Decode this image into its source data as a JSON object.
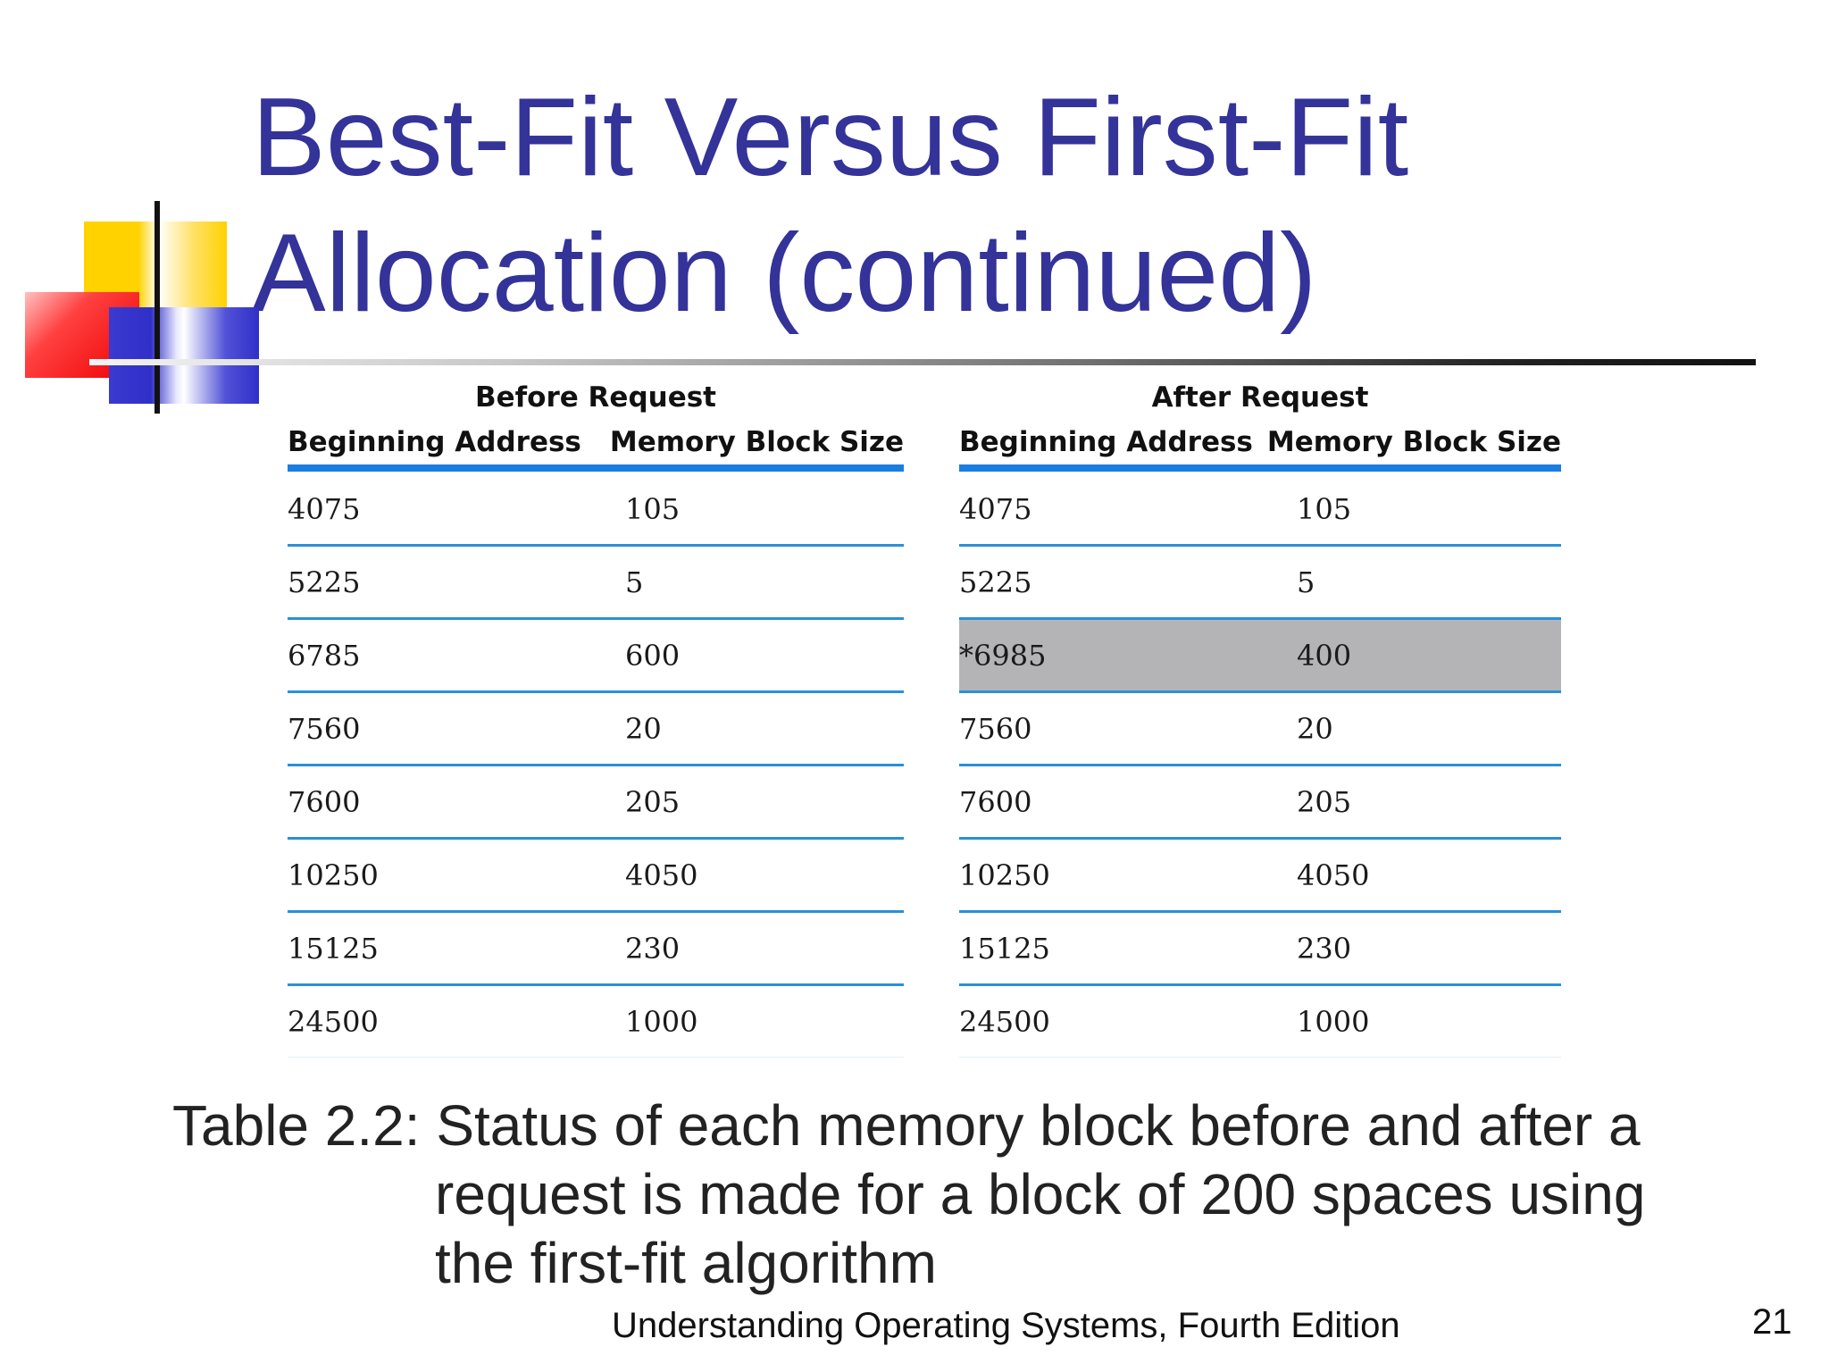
{
  "title": {
    "line1": "Best-Fit Versus First-Fit",
    "line2": "Allocation (continued)"
  },
  "tables": {
    "before": {
      "heading": "Before Request",
      "col1": "Beginning Address",
      "col2": "Memory Block Size",
      "rows": [
        {
          "address": "4075",
          "size": "105"
        },
        {
          "address": "5225",
          "size": "5"
        },
        {
          "address": "6785",
          "size": "600"
        },
        {
          "address": "7560",
          "size": "20"
        },
        {
          "address": "7600",
          "size": "205"
        },
        {
          "address": "10250",
          "size": "4050"
        },
        {
          "address": "15125",
          "size": "230"
        },
        {
          "address": "24500",
          "size": "1000"
        }
      ]
    },
    "after": {
      "heading": "After Request",
      "col1": "Beginning Address",
      "col2": "Memory Block Size",
      "highlight_row": 2,
      "highlight_color": "#b4b4b6",
      "rows": [
        {
          "address": "4075",
          "size": "105"
        },
        {
          "address": "5225",
          "size": "5"
        },
        {
          "address": "*6985",
          "size": "400"
        },
        {
          "address": "7560",
          "size": "20"
        },
        {
          "address": "7600",
          "size": "205"
        },
        {
          "address": "10250",
          "size": "4050"
        },
        {
          "address": "15125",
          "size": "230"
        },
        {
          "address": "24500",
          "size": "1000"
        }
      ]
    }
  },
  "caption": {
    "line1": "Table 2.2: Status of each memory block before and after a",
    "line2": "request is made for a block of 200 spaces using",
    "line3": "the first-fit algorithm"
  },
  "footer": "Understanding Operating Systems, Fourth Edition",
  "page_number": "21",
  "colors": {
    "title": "#333399",
    "rule_blue": "#1a7ee0"
  }
}
